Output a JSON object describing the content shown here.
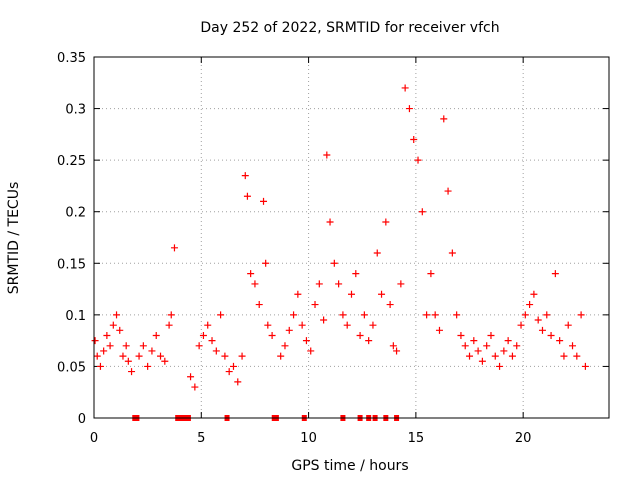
{
  "chart_data": {
    "type": "scatter",
    "title": "Day 252 of 2022, SRMTID for receiver vfch",
    "xlabel": "GPS time / hours",
    "ylabel": "SRMTID / TECUs",
    "xlim": [
      0,
      24
    ],
    "ylim": [
      0,
      0.35
    ],
    "xticks": [
      0,
      5,
      10,
      15,
      20
    ],
    "xtick_labels": [
      "0",
      "5",
      "10",
      "15",
      "20"
    ],
    "yticks": [
      0,
      0.05,
      0.1,
      0.15,
      0.2,
      0.25,
      0.3,
      0.35
    ],
    "ytick_labels": [
      "0",
      "0.05",
      "0.1",
      "0.15",
      "0.2",
      "0.25",
      "0.3",
      "0.35"
    ],
    "grid": true,
    "marker": "plus",
    "series_color": "#ff0000",
    "series": [
      {
        "name": "SRMTID",
        "x": [
          0.05,
          0.15,
          0.3,
          0.45,
          0.6,
          0.75,
          0.9,
          1.05,
          1.2,
          1.35,
          1.5,
          1.6,
          1.75,
          2.1,
          2.3,
          2.5,
          2.7,
          2.9,
          3.1,
          3.3,
          3.5,
          3.6,
          3.75,
          4.5,
          4.7,
          4.9,
          5.1,
          5.3,
          5.5,
          5.7,
          5.9,
          6.1,
          6.3,
          6.5,
          6.7,
          6.9,
          7.05,
          7.15,
          7.3,
          7.5,
          7.7,
          7.9,
          8.0,
          8.1,
          8.3,
          8.7,
          8.9,
          9.1,
          9.3,
          9.5,
          9.7,
          9.9,
          10.1,
          10.3,
          10.5,
          10.7,
          10.85,
          11.0,
          11.2,
          11.4,
          11.6,
          11.8,
          12.0,
          12.2,
          12.4,
          12.6,
          12.8,
          13.0,
          13.2,
          13.4,
          13.6,
          13.8,
          13.95,
          14.1,
          14.3,
          14.5,
          14.7,
          14.9,
          15.1,
          15.3,
          15.5,
          15.7,
          15.9,
          16.1,
          16.3,
          16.5,
          16.7,
          16.9,
          17.1,
          17.3,
          17.5,
          17.7,
          17.9,
          18.1,
          18.3,
          18.5,
          18.7,
          18.9,
          19.1,
          19.3,
          19.5,
          19.7,
          19.9,
          20.1,
          20.3,
          20.5,
          20.7,
          20.9,
          21.1,
          21.3,
          21.5,
          21.7,
          21.9,
          22.1,
          22.3,
          22.5,
          22.7,
          22.9
        ],
        "y": [
          0.075,
          0.06,
          0.05,
          0.065,
          0.08,
          0.07,
          0.09,
          0.1,
          0.085,
          0.06,
          0.07,
          0.055,
          0.045,
          0.06,
          0.07,
          0.05,
          0.065,
          0.08,
          0.06,
          0.055,
          0.09,
          0.1,
          0.165,
          0.04,
          0.03,
          0.07,
          0.08,
          0.09,
          0.075,
          0.065,
          0.1,
          0.06,
          0.045,
          0.05,
          0.035,
          0.06,
          0.235,
          0.215,
          0.14,
          0.13,
          0.11,
          0.21,
          0.15,
          0.09,
          0.08,
          0.06,
          0.07,
          0.085,
          0.1,
          0.12,
          0.09,
          0.075,
          0.065,
          0.11,
          0.13,
          0.095,
          0.255,
          0.19,
          0.15,
          0.13,
          0.1,
          0.09,
          0.12,
          0.14,
          0.08,
          0.1,
          0.075,
          0.09,
          0.16,
          0.12,
          0.19,
          0.11,
          0.07,
          0.065,
          0.13,
          0.32,
          0.3,
          0.27,
          0.25,
          0.2,
          0.1,
          0.14,
          0.1,
          0.085,
          0.29,
          0.22,
          0.16,
          0.1,
          0.08,
          0.07,
          0.06,
          0.075,
          0.065,
          0.055,
          0.07,
          0.08,
          0.06,
          0.05,
          0.065,
          0.075,
          0.06,
          0.07,
          0.09,
          0.1,
          0.11,
          0.12,
          0.095,
          0.085,
          0.1,
          0.08,
          0.14,
          0.075,
          0.06,
          0.09,
          0.07,
          0.06,
          0.1,
          0.05
        ]
      }
    ],
    "bottom_markers_x": [
      1.9,
      2.0,
      3.9,
      4.0,
      4.1,
      4.2,
      4.3,
      4.4,
      6.2,
      8.4,
      8.5,
      9.8,
      11.6,
      12.4,
      12.8,
      13.1,
      13.6,
      14.1
    ]
  }
}
